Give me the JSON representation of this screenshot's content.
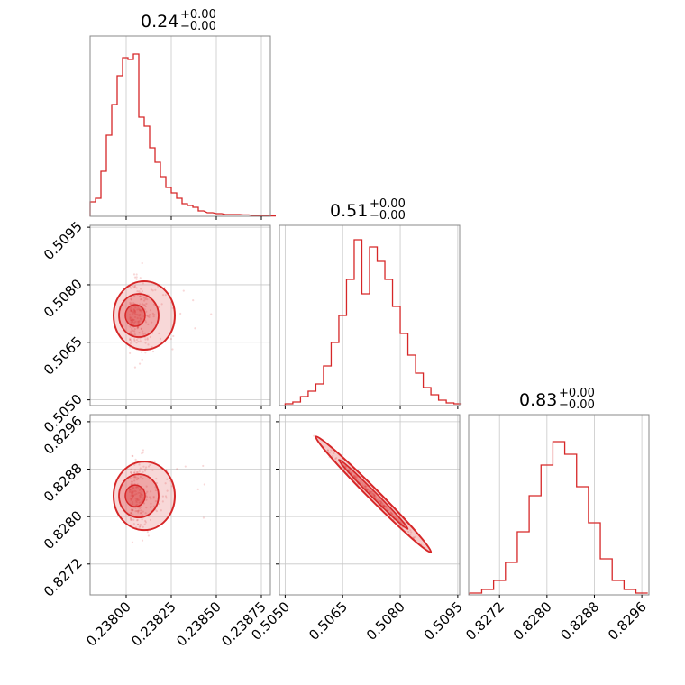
{
  "chart_data": {
    "type": "corner",
    "color": "#d62728",
    "grid": true,
    "parameters": [
      {
        "title_value": "0.24",
        "title_plus": "+0.00",
        "title_minus": "−0.00",
        "range": [
          0.2378,
          0.2388
        ],
        "ticks": [
          0.238,
          0.23825,
          0.2385,
          0.23875
        ],
        "tick_labels": [
          "0.23800",
          "0.23825",
          "0.23850",
          "0.23875"
        ],
        "hist_x": [
          0.2378,
          0.23783,
          0.23786,
          0.23789,
          0.23792,
          0.23795,
          0.23798,
          0.23801,
          0.23804,
          0.23807,
          0.2381,
          0.23813,
          0.23816,
          0.23819,
          0.23822,
          0.23825,
          0.23828,
          0.23831,
          0.23834,
          0.23837,
          0.2384,
          0.23845,
          0.2385,
          0.23855,
          0.2386,
          0.23865,
          0.2387,
          0.23875,
          0.2388
        ],
        "hist_y": [
          0.08,
          0.1,
          0.25,
          0.45,
          0.62,
          0.78,
          0.88,
          0.87,
          0.9,
          0.55,
          0.5,
          0.38,
          0.3,
          0.22,
          0.16,
          0.13,
          0.1,
          0.07,
          0.06,
          0.05,
          0.03,
          0.02,
          0.015,
          0.01,
          0.01,
          0.008,
          0.005,
          0.004,
          0.002
        ]
      },
      {
        "title_value": "0.51",
        "title_plus": "+0.00",
        "title_minus": "−0.00",
        "range": [
          0.50485,
          0.50955
        ],
        "ticks": [
          0.505,
          0.5065,
          0.508,
          0.5095
        ],
        "tick_labels": [
          "0.5050",
          "0.5065",
          "0.5080",
          "0.5095"
        ],
        "hist_x": [
          0.505,
          0.5052,
          0.5054,
          0.5056,
          0.5058,
          0.506,
          0.5062,
          0.5064,
          0.5066,
          0.5068,
          0.507,
          0.5072,
          0.5074,
          0.5076,
          0.5078,
          0.508,
          0.5082,
          0.5084,
          0.5086,
          0.5088,
          0.509,
          0.5092,
          0.5094
        ],
        "hist_y": [
          0.01,
          0.02,
          0.05,
          0.08,
          0.12,
          0.22,
          0.35,
          0.5,
          0.7,
          0.92,
          0.62,
          0.88,
          0.8,
          0.7,
          0.55,
          0.4,
          0.28,
          0.18,
          0.1,
          0.06,
          0.03,
          0.015,
          0.01
        ]
      },
      {
        "title_value": "0.83",
        "title_plus": "+0.00",
        "title_minus": "−0.00",
        "range": [
          0.82668,
          0.82972
        ],
        "ticks": [
          0.8272,
          0.828,
          0.8288,
          0.8296
        ],
        "tick_labels": [
          "0.8272",
          "0.8280",
          "0.8288",
          "0.8296"
        ],
        "hist_x": [
          0.8267,
          0.8269,
          0.8271,
          0.8273,
          0.8275,
          0.8277,
          0.8279,
          0.8281,
          0.8283,
          0.8285,
          0.8287,
          0.8289,
          0.8291,
          0.8293,
          0.8295
        ],
        "hist_y": [
          0.01,
          0.03,
          0.08,
          0.18,
          0.35,
          0.55,
          0.72,
          0.85,
          0.78,
          0.6,
          0.4,
          0.2,
          0.08,
          0.03,
          0.01
        ]
      }
    ]
  }
}
